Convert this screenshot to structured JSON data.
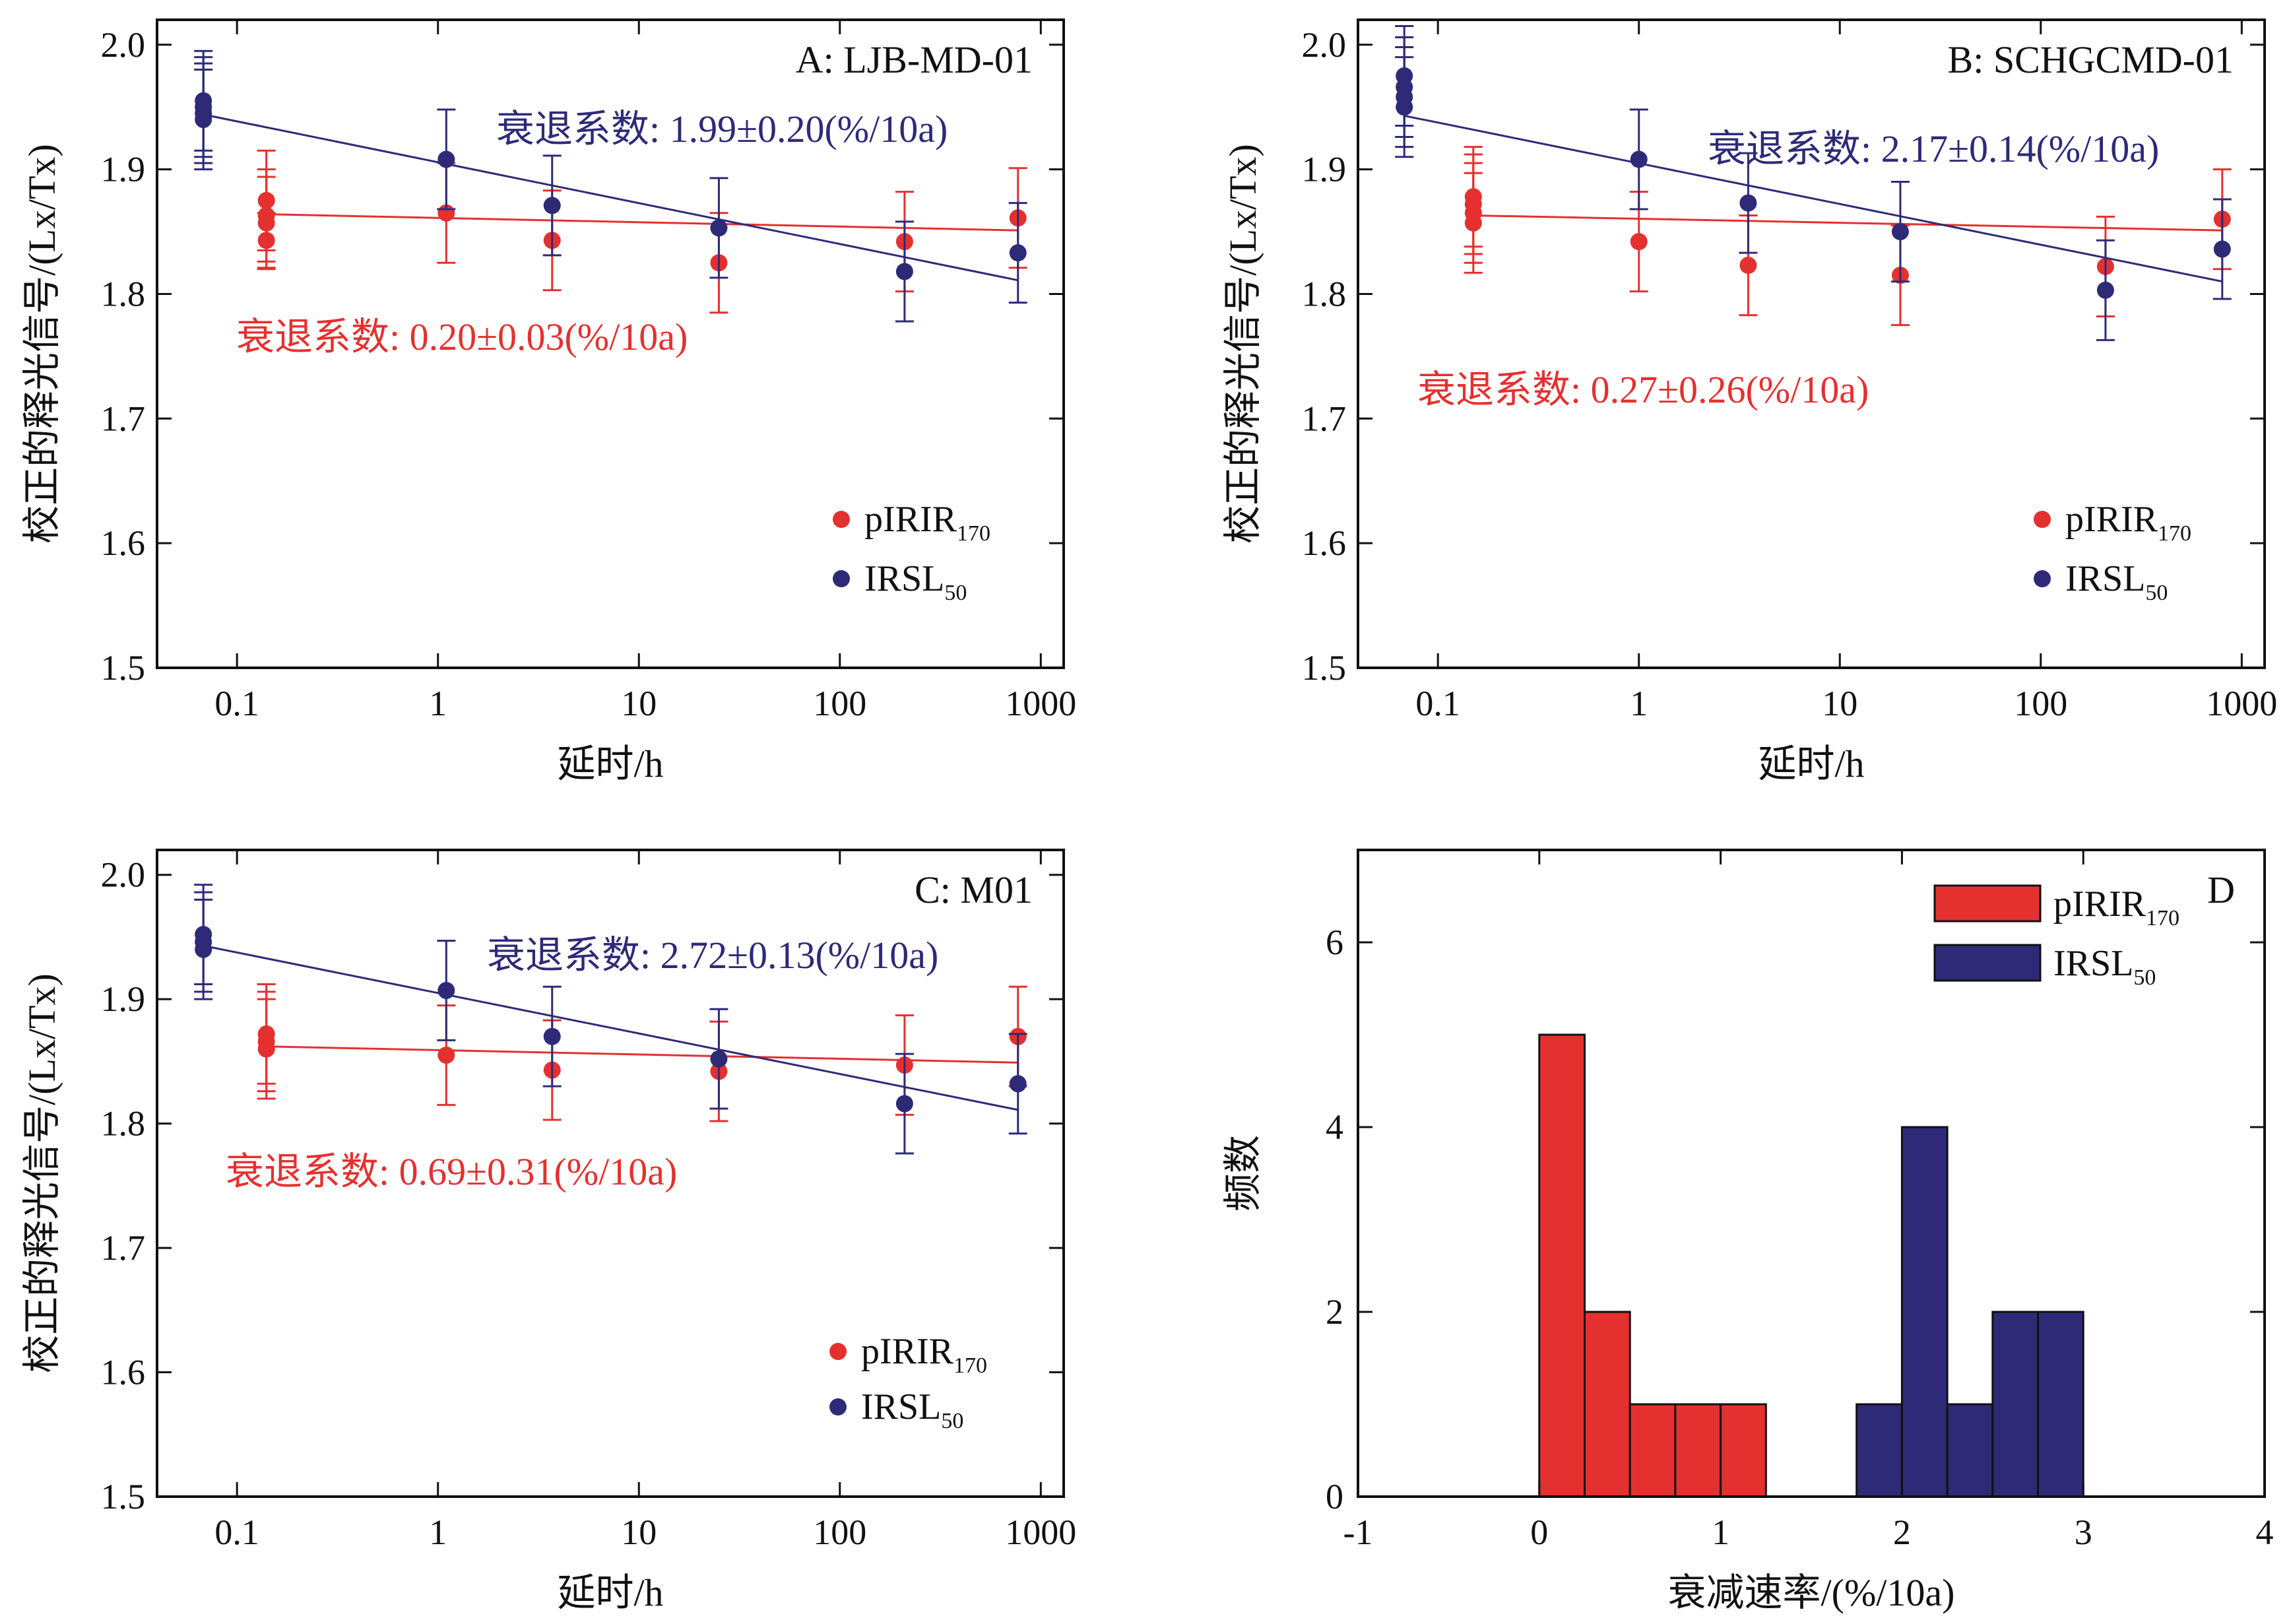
{
  "colors": {
    "pIRIR": "#e53030",
    "IRSL": "#2e2a78",
    "axis": "#111111"
  },
  "chart_data": [
    {
      "id": "A",
      "type": "scatter",
      "panel_label": "A: LJB-MD-01",
      "xscale": "log",
      "xlim": [
        0.04,
        1300
      ],
      "ylim": [
        1.5,
        2.02
      ],
      "xticks": [
        0.1,
        1,
        10,
        100,
        1000
      ],
      "xtick_labels": [
        "0.1",
        "1",
        "10",
        "100",
        "1000"
      ],
      "yticks": [
        1.5,
        1.6,
        1.7,
        1.8,
        1.9,
        2.0
      ],
      "ytick_labels": [
        "1.5",
        "1.6",
        "1.7",
        "1.8",
        "1.9",
        "2.0"
      ],
      "xlabel": "延时/h",
      "ylabel": "校正的释光信号/(Lx/Tx)",
      "legend_placement": "bottom-right",
      "series": [
        {
          "name": "pIRIR",
          "name_sub": "170",
          "color_key": "pIRIR",
          "points": [
            {
              "x": 0.14,
              "y": 1.843,
              "err": 0.022
            },
            {
              "x": 0.14,
              "y": 1.857,
              "err": 0.037
            },
            {
              "x": 0.14,
              "y": 1.863,
              "err": 0.037
            },
            {
              "x": 0.14,
              "y": 1.875,
              "err": 0.04
            },
            {
              "x": 1.1,
              "y": 1.865,
              "err": 0.04
            },
            {
              "x": 3.7,
              "y": 1.843,
              "err": 0.04
            },
            {
              "x": 25,
              "y": 1.825,
              "err": 0.04
            },
            {
              "x": 210,
              "y": 1.842,
              "err": 0.04
            },
            {
              "x": 770,
              "y": 1.861,
              "err": 0.04
            }
          ],
          "fit": {
            "x": [
              0.14,
              770
            ],
            "y": [
              1.864,
              1.851
            ]
          },
          "annotation": {
            "prefix": "衰退系数",
            "value": ": 0.20±0.03(%/10a)"
          }
        },
        {
          "name": "IRSL",
          "name_sub": "50",
          "color_key": "IRSL",
          "points": [
            {
              "x": 0.068,
              "y": 1.94,
              "err": 0.04
            },
            {
              "x": 0.068,
              "y": 1.945,
              "err": 0.04
            },
            {
              "x": 0.068,
              "y": 1.95,
              "err": 0.04
            },
            {
              "x": 0.068,
              "y": 1.955,
              "err": 0.04
            },
            {
              "x": 1.1,
              "y": 1.908,
              "err": 0.04
            },
            {
              "x": 3.7,
              "y": 1.871,
              "err": 0.04
            },
            {
              "x": 25,
              "y": 1.853,
              "err": 0.04
            },
            {
              "x": 210,
              "y": 1.818,
              "err": 0.04
            },
            {
              "x": 770,
              "y": 1.833,
              "err": 0.04
            }
          ],
          "fit": {
            "x": [
              0.068,
              770
            ],
            "y": [
              1.944,
              1.811
            ]
          },
          "annotation": {
            "prefix": "衰退系数",
            "value": ": 1.99±0.20(%/10a)"
          }
        }
      ]
    },
    {
      "id": "B",
      "type": "scatter",
      "panel_label": "B: SCHGCMD-01",
      "xscale": "log",
      "xlim": [
        0.04,
        1300
      ],
      "ylim": [
        1.5,
        2.02
      ],
      "xticks": [
        0.1,
        1,
        10,
        100,
        1000
      ],
      "xtick_labels": [
        "0.1",
        "1",
        "10",
        "100",
        "1000"
      ],
      "yticks": [
        1.5,
        1.6,
        1.7,
        1.8,
        1.9,
        2.0
      ],
      "ytick_labels": [
        "1.5",
        "1.6",
        "1.7",
        "1.8",
        "1.9",
        "2.0"
      ],
      "xlabel": "延时/h",
      "ylabel": "校正的释光信号/(Lx/Tx)",
      "legend_placement": "bottom-right",
      "series": [
        {
          "name": "pIRIR",
          "name_sub": "170",
          "color_key": "pIRIR",
          "points": [
            {
              "x": 0.15,
              "y": 1.857,
              "err": 0.04
            },
            {
              "x": 0.15,
              "y": 1.865,
              "err": 0.04
            },
            {
              "x": 0.15,
              "y": 1.872,
              "err": 0.04
            },
            {
              "x": 0.15,
              "y": 1.878,
              "err": 0.04
            },
            {
              "x": 1.0,
              "y": 1.842,
              "err": 0.04
            },
            {
              "x": 3.5,
              "y": 1.823,
              "err": 0.04
            },
            {
              "x": 20,
              "y": 1.815,
              "err": 0.04
            },
            {
              "x": 210,
              "y": 1.822,
              "err": 0.04
            },
            {
              "x": 800,
              "y": 1.86,
              "err": 0.04
            }
          ],
          "fit": {
            "x": [
              0.15,
              800
            ],
            "y": [
              1.863,
              1.851
            ]
          },
          "annotation": {
            "prefix": "衰退系数",
            "value": ": 0.27±0.26(%/10a)"
          }
        },
        {
          "name": "IRSL",
          "name_sub": "50",
          "color_key": "IRSL",
          "points": [
            {
              "x": 0.068,
              "y": 1.95,
              "err": 0.04
            },
            {
              "x": 0.068,
              "y": 1.958,
              "err": 0.04
            },
            {
              "x": 0.068,
              "y": 1.966,
              "err": 0.04
            },
            {
              "x": 0.068,
              "y": 1.975,
              "err": 0.04
            },
            {
              "x": 1.0,
              "y": 1.908,
              "err": 0.04
            },
            {
              "x": 3.5,
              "y": 1.873,
              "err": 0.04
            },
            {
              "x": 20,
              "y": 1.85,
              "err": 0.04
            },
            {
              "x": 210,
              "y": 1.803,
              "err": 0.04
            },
            {
              "x": 800,
              "y": 1.836,
              "err": 0.04
            }
          ],
          "fit": {
            "x": [
              0.068,
              800
            ],
            "y": [
              1.943,
              1.81
            ]
          },
          "annotation": {
            "prefix": "衰退系数",
            "value": ": 2.17±0.14(%/10a)"
          }
        }
      ]
    },
    {
      "id": "C",
      "type": "scatter",
      "panel_label": "C: M01",
      "xscale": "log",
      "xlim": [
        0.04,
        1300
      ],
      "ylim": [
        1.5,
        2.02
      ],
      "xticks": [
        0.1,
        1,
        10,
        100,
        1000
      ],
      "xtick_labels": [
        "0.1",
        "1",
        "10",
        "100",
        "1000"
      ],
      "yticks": [
        1.5,
        1.6,
        1.7,
        1.8,
        1.9,
        2.0
      ],
      "ytick_labels": [
        "1.5",
        "1.6",
        "1.7",
        "1.8",
        "1.9",
        "2.0"
      ],
      "xlabel": "延时/h",
      "ylabel": "校正的释光信号/(Lx/Tx)",
      "legend_placement": "bottom-right",
      "series": [
        {
          "name": "pIRIR",
          "name_sub": "170",
          "color_key": "pIRIR",
          "points": [
            {
              "x": 0.14,
              "y": 1.86,
              "err": 0.04
            },
            {
              "x": 0.14,
              "y": 1.866,
              "err": 0.04
            },
            {
              "x": 0.14,
              "y": 1.872,
              "err": 0.04
            },
            {
              "x": 1.1,
              "y": 1.855,
              "err": 0.04
            },
            {
              "x": 3.7,
              "y": 1.843,
              "err": 0.04
            },
            {
              "x": 25,
              "y": 1.842,
              "err": 0.04
            },
            {
              "x": 210,
              "y": 1.847,
              "err": 0.04
            },
            {
              "x": 770,
              "y": 1.87,
              "err": 0.04
            }
          ],
          "fit": {
            "x": [
              0.14,
              770
            ],
            "y": [
              1.862,
              1.849
            ]
          },
          "annotation": {
            "prefix": "衰退系数",
            "value": ": 0.69±0.31(%/10a)"
          }
        },
        {
          "name": "IRSL",
          "name_sub": "50",
          "color_key": "IRSL",
          "points": [
            {
              "x": 0.068,
              "y": 1.94,
              "err": 0.04
            },
            {
              "x": 0.068,
              "y": 1.946,
              "err": 0.04
            },
            {
              "x": 0.068,
              "y": 1.952,
              "err": 0.04
            },
            {
              "x": 1.1,
              "y": 1.907,
              "err": 0.04
            },
            {
              "x": 3.7,
              "y": 1.87,
              "err": 0.04
            },
            {
              "x": 25,
              "y": 1.852,
              "err": 0.04
            },
            {
              "x": 210,
              "y": 1.816,
              "err": 0.04
            },
            {
              "x": 770,
              "y": 1.832,
              "err": 0.04
            }
          ],
          "fit": {
            "x": [
              0.068,
              770
            ],
            "y": [
              1.943,
              1.811
            ]
          },
          "annotation": {
            "prefix": "衰退系数",
            "value": ": 2.72±0.13(%/10a)"
          }
        }
      ]
    },
    {
      "id": "D",
      "type": "bar",
      "panel_label": "D",
      "xlim": [
        -1,
        4
      ],
      "ylim": [
        0,
        7
      ],
      "xticks": [
        -1,
        0,
        1,
        2,
        3,
        4
      ],
      "xtick_labels": [
        "-1",
        "0",
        "1",
        "2",
        "3",
        "4"
      ],
      "yticks": [
        0,
        2,
        4,
        6
      ],
      "ytick_labels": [
        "0",
        "2",
        "4",
        "6"
      ],
      "xlabel": "衰减速率/(%/10a)",
      "ylabel": "频数",
      "bin_width": 0.25,
      "legend_placement": "top-center",
      "series": [
        {
          "name": "pIRIR",
          "name_sub": "170",
          "color_key": "pIRIR",
          "bins": [
            {
              "x0": 0.0,
              "count": 5
            },
            {
              "x0": 0.25,
              "count": 2
            },
            {
              "x0": 0.5,
              "count": 1
            },
            {
              "x0": 0.75,
              "count": 1
            },
            {
              "x0": 1.0,
              "count": 1
            }
          ]
        },
        {
          "name": "IRSL",
          "name_sub": "50",
          "color_key": "IRSL",
          "bins": [
            {
              "x0": 1.75,
              "count": 1
            },
            {
              "x0": 2.0,
              "count": 4
            },
            {
              "x0": 2.25,
              "count": 1
            },
            {
              "x0": 2.5,
              "count": 2
            },
            {
              "x0": 2.75,
              "count": 2
            }
          ]
        }
      ]
    }
  ]
}
